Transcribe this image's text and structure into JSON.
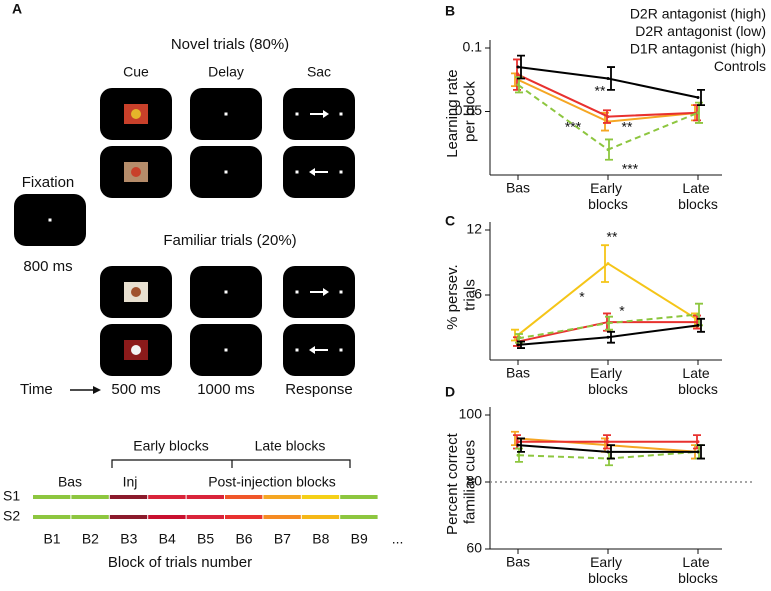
{
  "task_diagram": {
    "panel_label": "A",
    "novel_title": "Novel trials (80%)",
    "columns": [
      "Cue",
      "Delay",
      "Sac"
    ],
    "fixation": "Fixation",
    "fixation_duration": "800 ms",
    "familiar_title": "Familiar trials (20%)",
    "time_label": "Time",
    "durations": [
      "500 ms",
      "1000 ms",
      "Response"
    ],
    "block_groups": [
      "Early blocks",
      "Late blocks"
    ],
    "phases": [
      "Bas",
      "Inj",
      "Post-injection blocks"
    ],
    "sessions": [
      "S1",
      "S2"
    ],
    "blocks": [
      "B1",
      "B2",
      "B3",
      "B4",
      "B5",
      "B6",
      "B7",
      "B8",
      "B9",
      "..."
    ],
    "x_axis_label": "Block of trials number"
  },
  "chart_data": [
    {
      "type": "line",
      "panel_label": "B",
      "ylabel": "Learning rate per block",
      "categories": [
        "Bas",
        "Early blocks",
        "Late blocks"
      ],
      "ylim": [
        0,
        0.1
      ],
      "yticks": [
        0.05,
        0.1
      ],
      "legend": "top-right",
      "series": [
        {
          "name": "D2R antagonist (high)",
          "color": "#f5a623",
          "values": [
            0.075,
            0.042,
            0.049
          ],
          "errors": [
            0.005,
            0.007,
            0.006
          ]
        },
        {
          "name": "D2R antagonist (low)",
          "color": "#e8312f",
          "values": [
            0.079,
            0.046,
            0.049
          ],
          "errors": [
            0.012,
            0.005,
            0.006
          ]
        },
        {
          "name": "D1R antagonist (high)",
          "color": "#8dc63f",
          "dashed": true,
          "values": [
            0.071,
            0.02,
            0.049
          ],
          "errors": [
            0.006,
            0.008,
            0.008
          ]
        },
        {
          "name": "Controls",
          "color": "#000000",
          "values": [
            0.085,
            0.076,
            0.061
          ],
          "errors": [
            0.009,
            0.009,
            0.006
          ]
        }
      ],
      "annotations": [
        "**",
        "***",
        "**",
        "***"
      ]
    },
    {
      "type": "line",
      "panel_label": "C",
      "ylabel": "% persev. trials",
      "categories": [
        "Bas",
        "Early blocks",
        "Late blocks"
      ],
      "ylim": [
        0,
        12
      ],
      "yticks": [
        6,
        12
      ],
      "series": [
        {
          "color": "#f5c518",
          "values": [
            2.3,
            8.9,
            3.7
          ],
          "errors": [
            0.5,
            1.7,
            0.6
          ]
        },
        {
          "color": "#e8312f",
          "values": [
            1.7,
            3.5,
            3.5
          ],
          "errors": [
            0.4,
            0.8,
            0.6
          ]
        },
        {
          "color": "#8dc63f",
          "dashed": true,
          "values": [
            2.0,
            3.4,
            4.2
          ],
          "errors": [
            0.4,
            0.6,
            1.0
          ]
        },
        {
          "color": "#000000",
          "values": [
            1.4,
            2.1,
            3.2
          ],
          "errors": [
            0.3,
            0.5,
            0.6
          ]
        }
      ],
      "annotations": [
        "**",
        "*",
        "*"
      ]
    },
    {
      "type": "line",
      "panel_label": "D",
      "ylabel": "Percent correct familiar cues",
      "categories": [
        "Bas",
        "Early blocks",
        "Late blocks"
      ],
      "ylim": [
        60,
        100
      ],
      "yticks": [
        60,
        80,
        100
      ],
      "hline": 80,
      "series": [
        {
          "color": "#f5a623",
          "values": [
            93,
            91,
            89
          ],
          "errors": [
            2,
            2,
            2
          ]
        },
        {
          "color": "#e8312f",
          "values": [
            92,
            92,
            92
          ],
          "errors": [
            2,
            2,
            2
          ]
        },
        {
          "color": "#8dc63f",
          "dashed": true,
          "values": [
            88,
            87,
            89
          ],
          "errors": [
            2,
            2,
            2
          ]
        },
        {
          "color": "#000000",
          "values": [
            91,
            89,
            89
          ],
          "errors": [
            2,
            2,
            2
          ]
        }
      ]
    }
  ]
}
